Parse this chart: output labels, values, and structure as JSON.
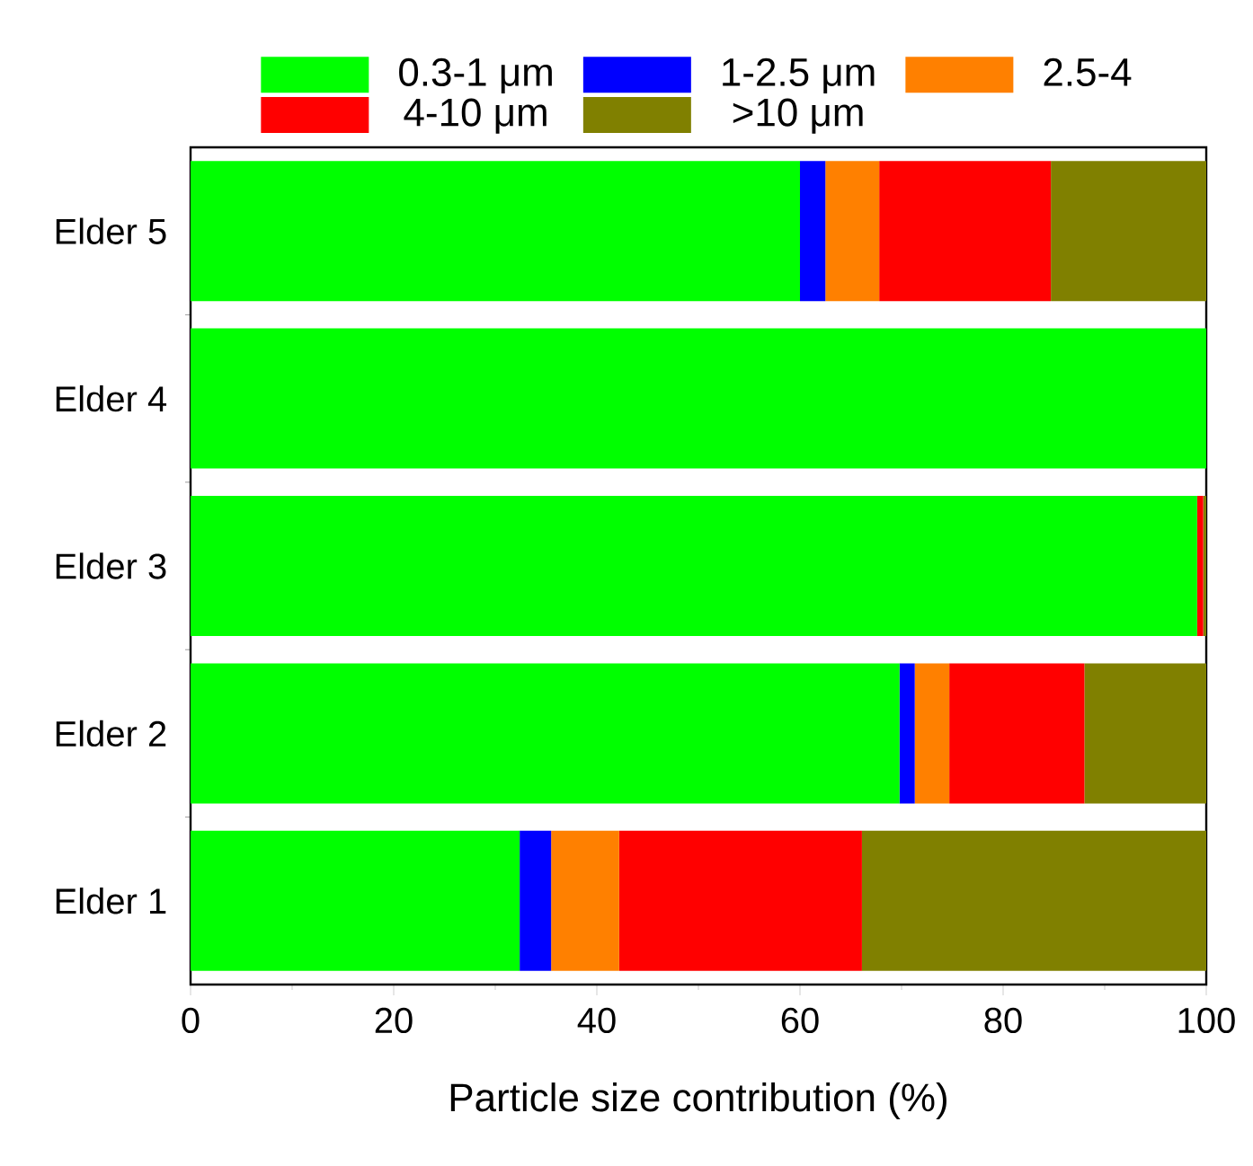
{
  "chart_data": {
    "type": "bar",
    "orientation": "horizontal",
    "stacked": true,
    "xlabel": "Particle size contribution (%)",
    "categories": [
      "Elder 5",
      "Elder 4",
      "Elder 3",
      "Elder 2",
      "Elder 1"
    ],
    "series": [
      {
        "name": "0.3-1 μm",
        "color": "#00ff00",
        "values": [
          60.0,
          100,
          99.1,
          69.8,
          32.4
        ]
      },
      {
        "name": "1-2.5 μm",
        "color": "#0000ff",
        "values": [
          2.5,
          0,
          0,
          1.5,
          3.1
        ]
      },
      {
        "name": "2.5-4",
        "color": "#ff8000",
        "values": [
          5.3,
          0,
          0,
          3.4,
          6.7
        ]
      },
      {
        "name": "4-10 μm",
        "color": "#ff0000",
        "values": [
          16.9,
          0,
          0.6,
          13.3,
          23.9
        ]
      },
      {
        "name": ">10 μm",
        "color": "#808000",
        "values": [
          15.3,
          0,
          0.3,
          12.0,
          33.9
        ]
      }
    ],
    "xlim": [
      0,
      100
    ],
    "xticks": [
      0,
      20,
      40,
      60,
      80,
      100
    ],
    "grid": false,
    "legend": "top"
  }
}
